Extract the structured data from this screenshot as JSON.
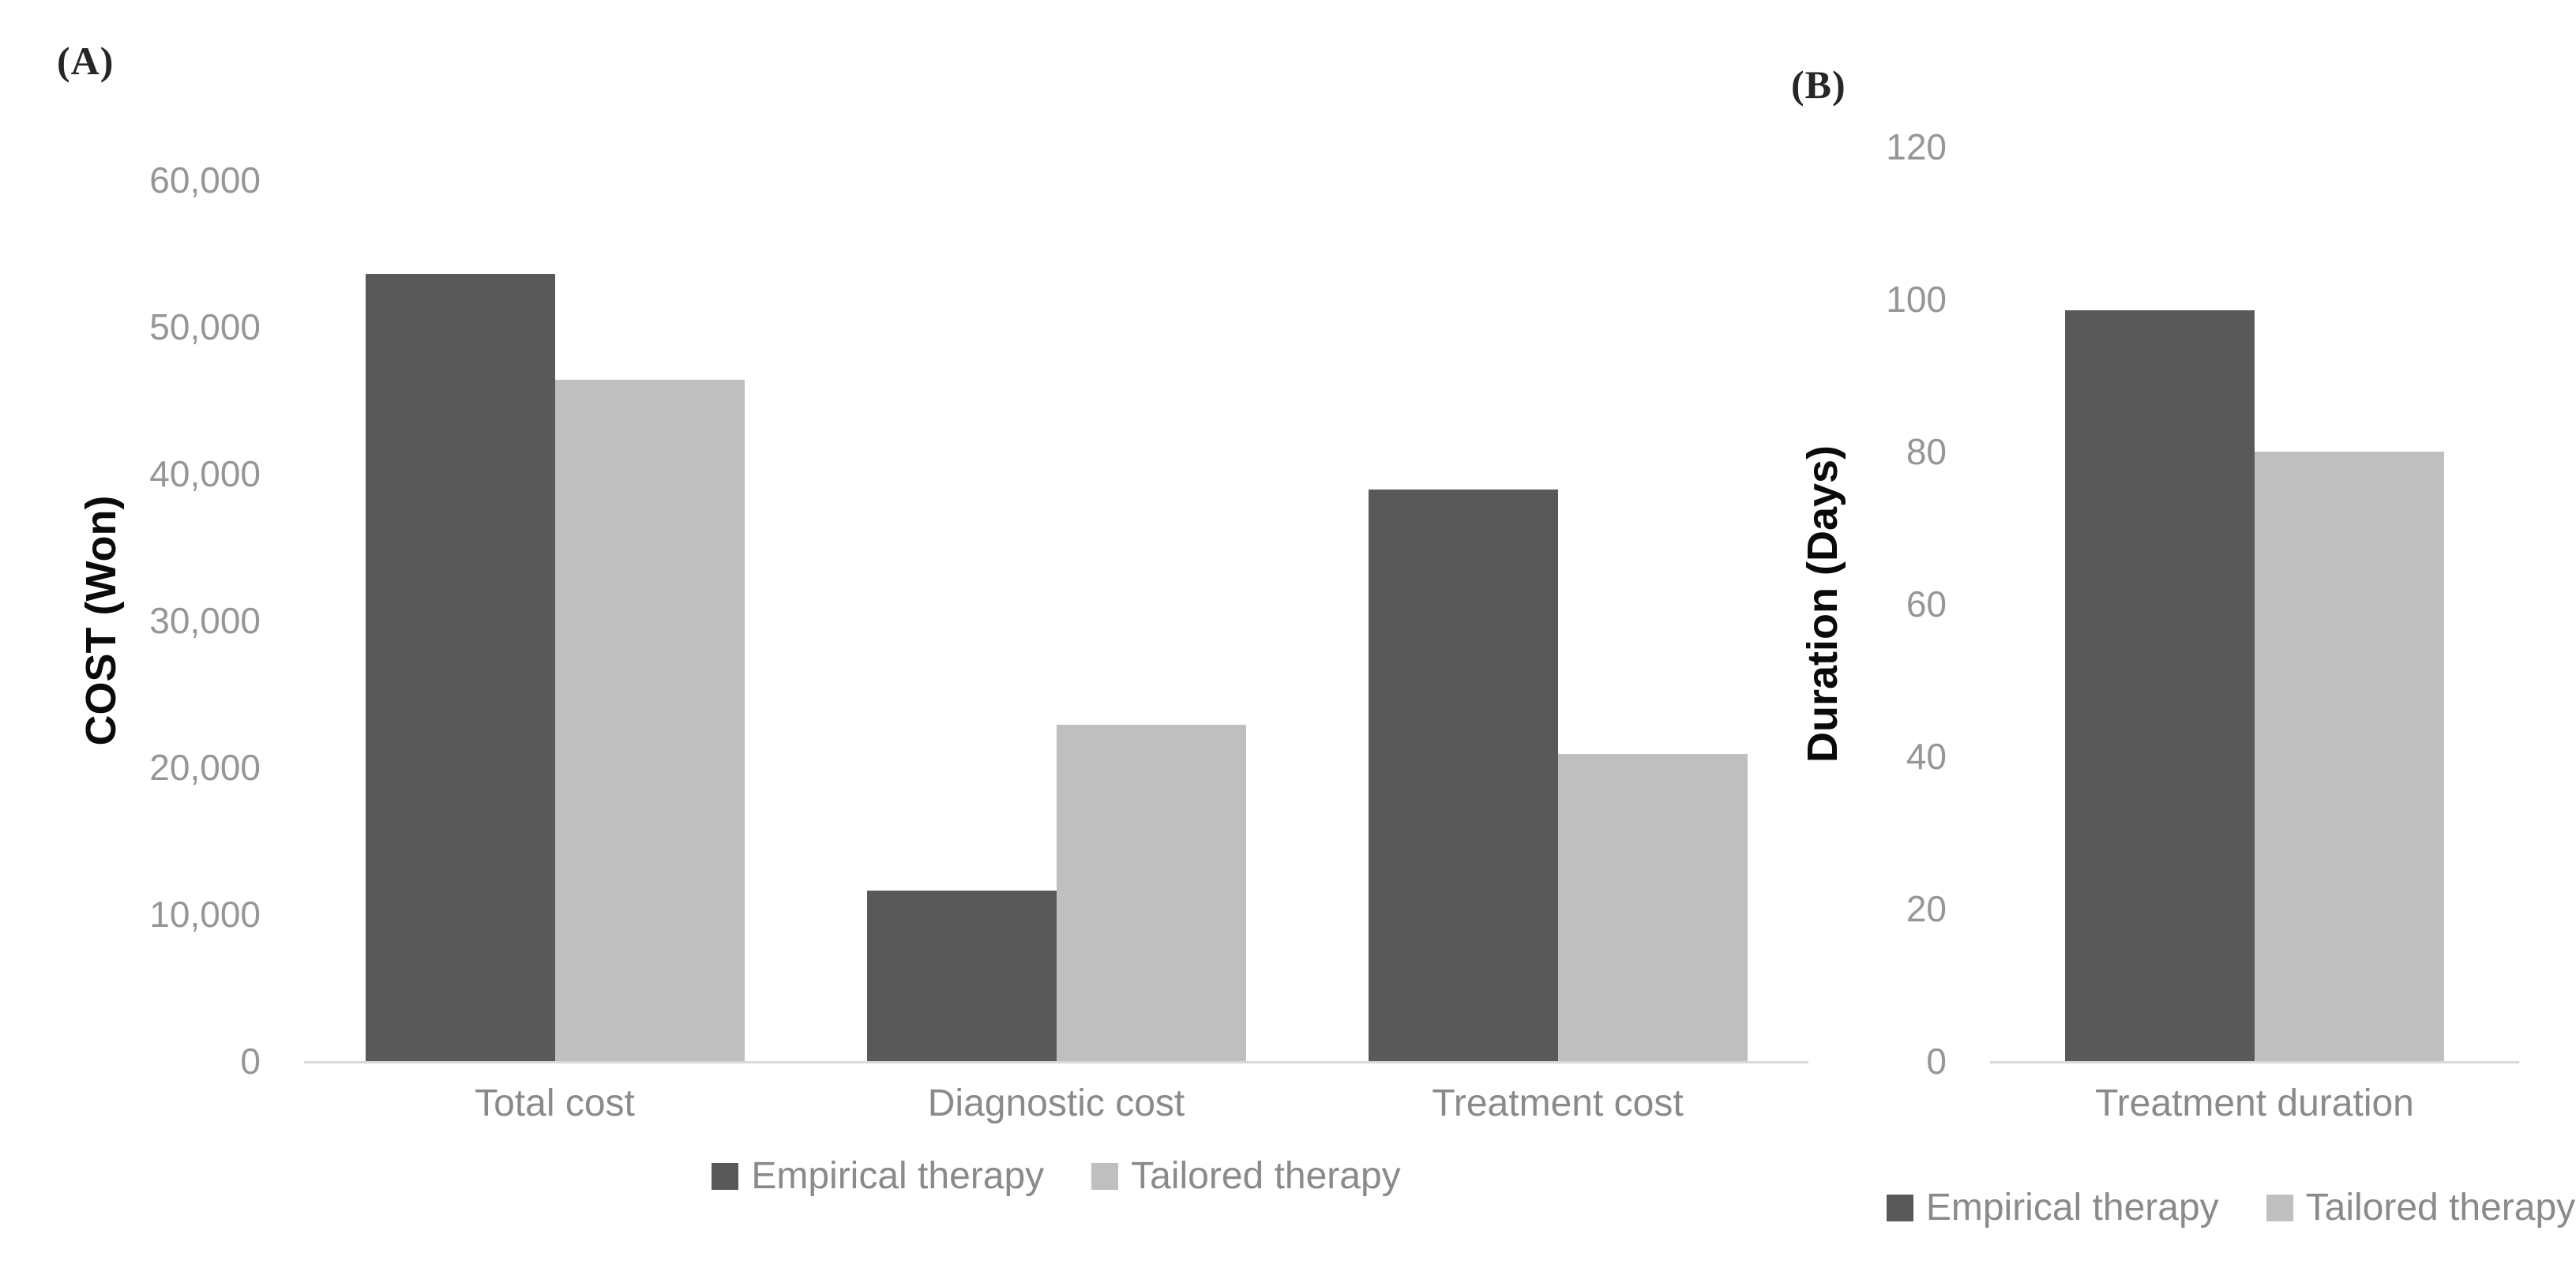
{
  "chart_data": [
    {
      "id": "A",
      "type": "bar",
      "panel_label": "(A)",
      "title": "",
      "xlabel": "",
      "ylabel": "COST (Won)",
      "categories": [
        "Total cost",
        "Diagnostic cost",
        "Treatment cost"
      ],
      "series": [
        {
          "name": "Empirical therapy",
          "color": "#595959",
          "values": [
            53600,
            11600,
            38900
          ]
        },
        {
          "name": "Tailored therapy",
          "color": "#bfbfbf",
          "values": [
            46400,
            22900,
            20900
          ]
        }
      ],
      "ylim": [
        0,
        60000
      ],
      "ytick_step": 10000,
      "ytick_labels": [
        "0",
        "10,000",
        "20,000",
        "30,000",
        "40,000",
        "50,000",
        "60,000"
      ],
      "grid": false,
      "legend_position": "bottom-center"
    },
    {
      "id": "B",
      "type": "bar",
      "panel_label": "(B)",
      "title": "",
      "xlabel": "",
      "ylabel": "Duration (Days)",
      "categories": [
        "Treatment duration"
      ],
      "series": [
        {
          "name": "Empirical therapy",
          "color": "#595959",
          "values": [
            98.5
          ]
        },
        {
          "name": "Tailored therapy",
          "color": "#bfbfbf",
          "values": [
            80
          ]
        }
      ],
      "ylim": [
        0,
        120
      ],
      "ytick_step": 20,
      "ytick_labels": [
        "0",
        "20",
        "40",
        "60",
        "80",
        "100",
        "120"
      ],
      "grid": false,
      "legend_position": "bottom-center"
    }
  ],
  "colors": {
    "empirical_series": "#595959",
    "tailored_series": "#bfbfbf",
    "axis_line": "#d9d9d9",
    "tick_text": "#969696",
    "label_text": "#8a8a8a"
  }
}
